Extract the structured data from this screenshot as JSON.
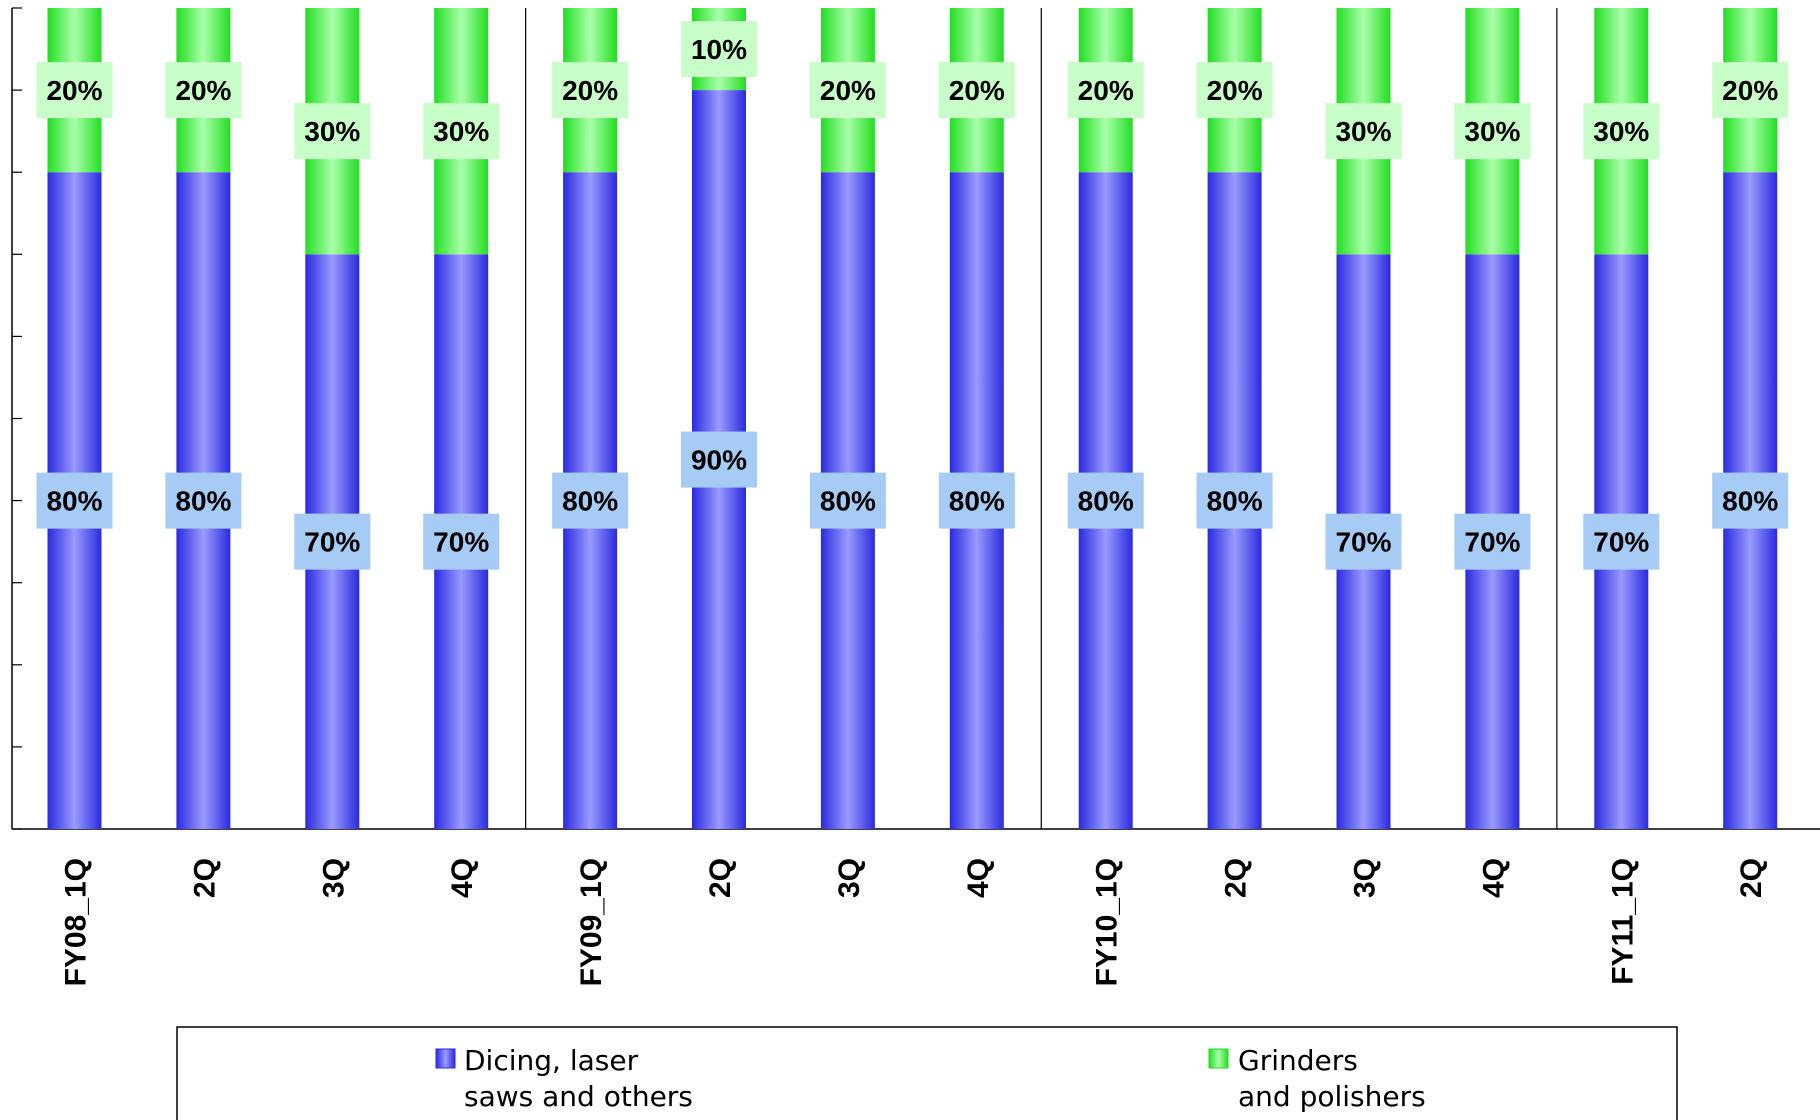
{
  "chart_data": {
    "type": "bar",
    "stacked": true,
    "percent": true,
    "categories": [
      "FY08_1Q",
      "2Q",
      "3Q",
      "4Q",
      "FY09_1Q",
      "2Q",
      "3Q",
      "4Q",
      "FY10_1Q",
      "2Q",
      "3Q",
      "4Q",
      "FY11_1Q",
      "2Q"
    ],
    "series": [
      {
        "name_lines": [
          "Dicing, laser",
          "saws and others"
        ],
        "color": "#6f6ff0",
        "values": [
          80,
          80,
          70,
          70,
          80,
          90,
          80,
          80,
          80,
          80,
          70,
          70,
          70,
          80
        ],
        "labels": [
          "80%",
          "80%",
          "70%",
          "70%",
          "80%",
          "90%",
          "80%",
          "80%",
          "80%",
          "80%",
          "70%",
          "70%",
          "70%",
          "80%"
        ]
      },
      {
        "name_lines": [
          "Grinders",
          "and polishers"
        ],
        "color": "#66ee66",
        "values": [
          20,
          20,
          30,
          30,
          20,
          10,
          20,
          20,
          20,
          20,
          30,
          30,
          30,
          20
        ],
        "labels": [
          "20%",
          "20%",
          "30%",
          "30%",
          "20%",
          "10%",
          "20%",
          "20%",
          "20%",
          "20%",
          "30%",
          "30%",
          "30%",
          "20%"
        ]
      }
    ],
    "ylim": [
      0,
      100
    ],
    "legend": "bottom",
    "grid": false
  }
}
